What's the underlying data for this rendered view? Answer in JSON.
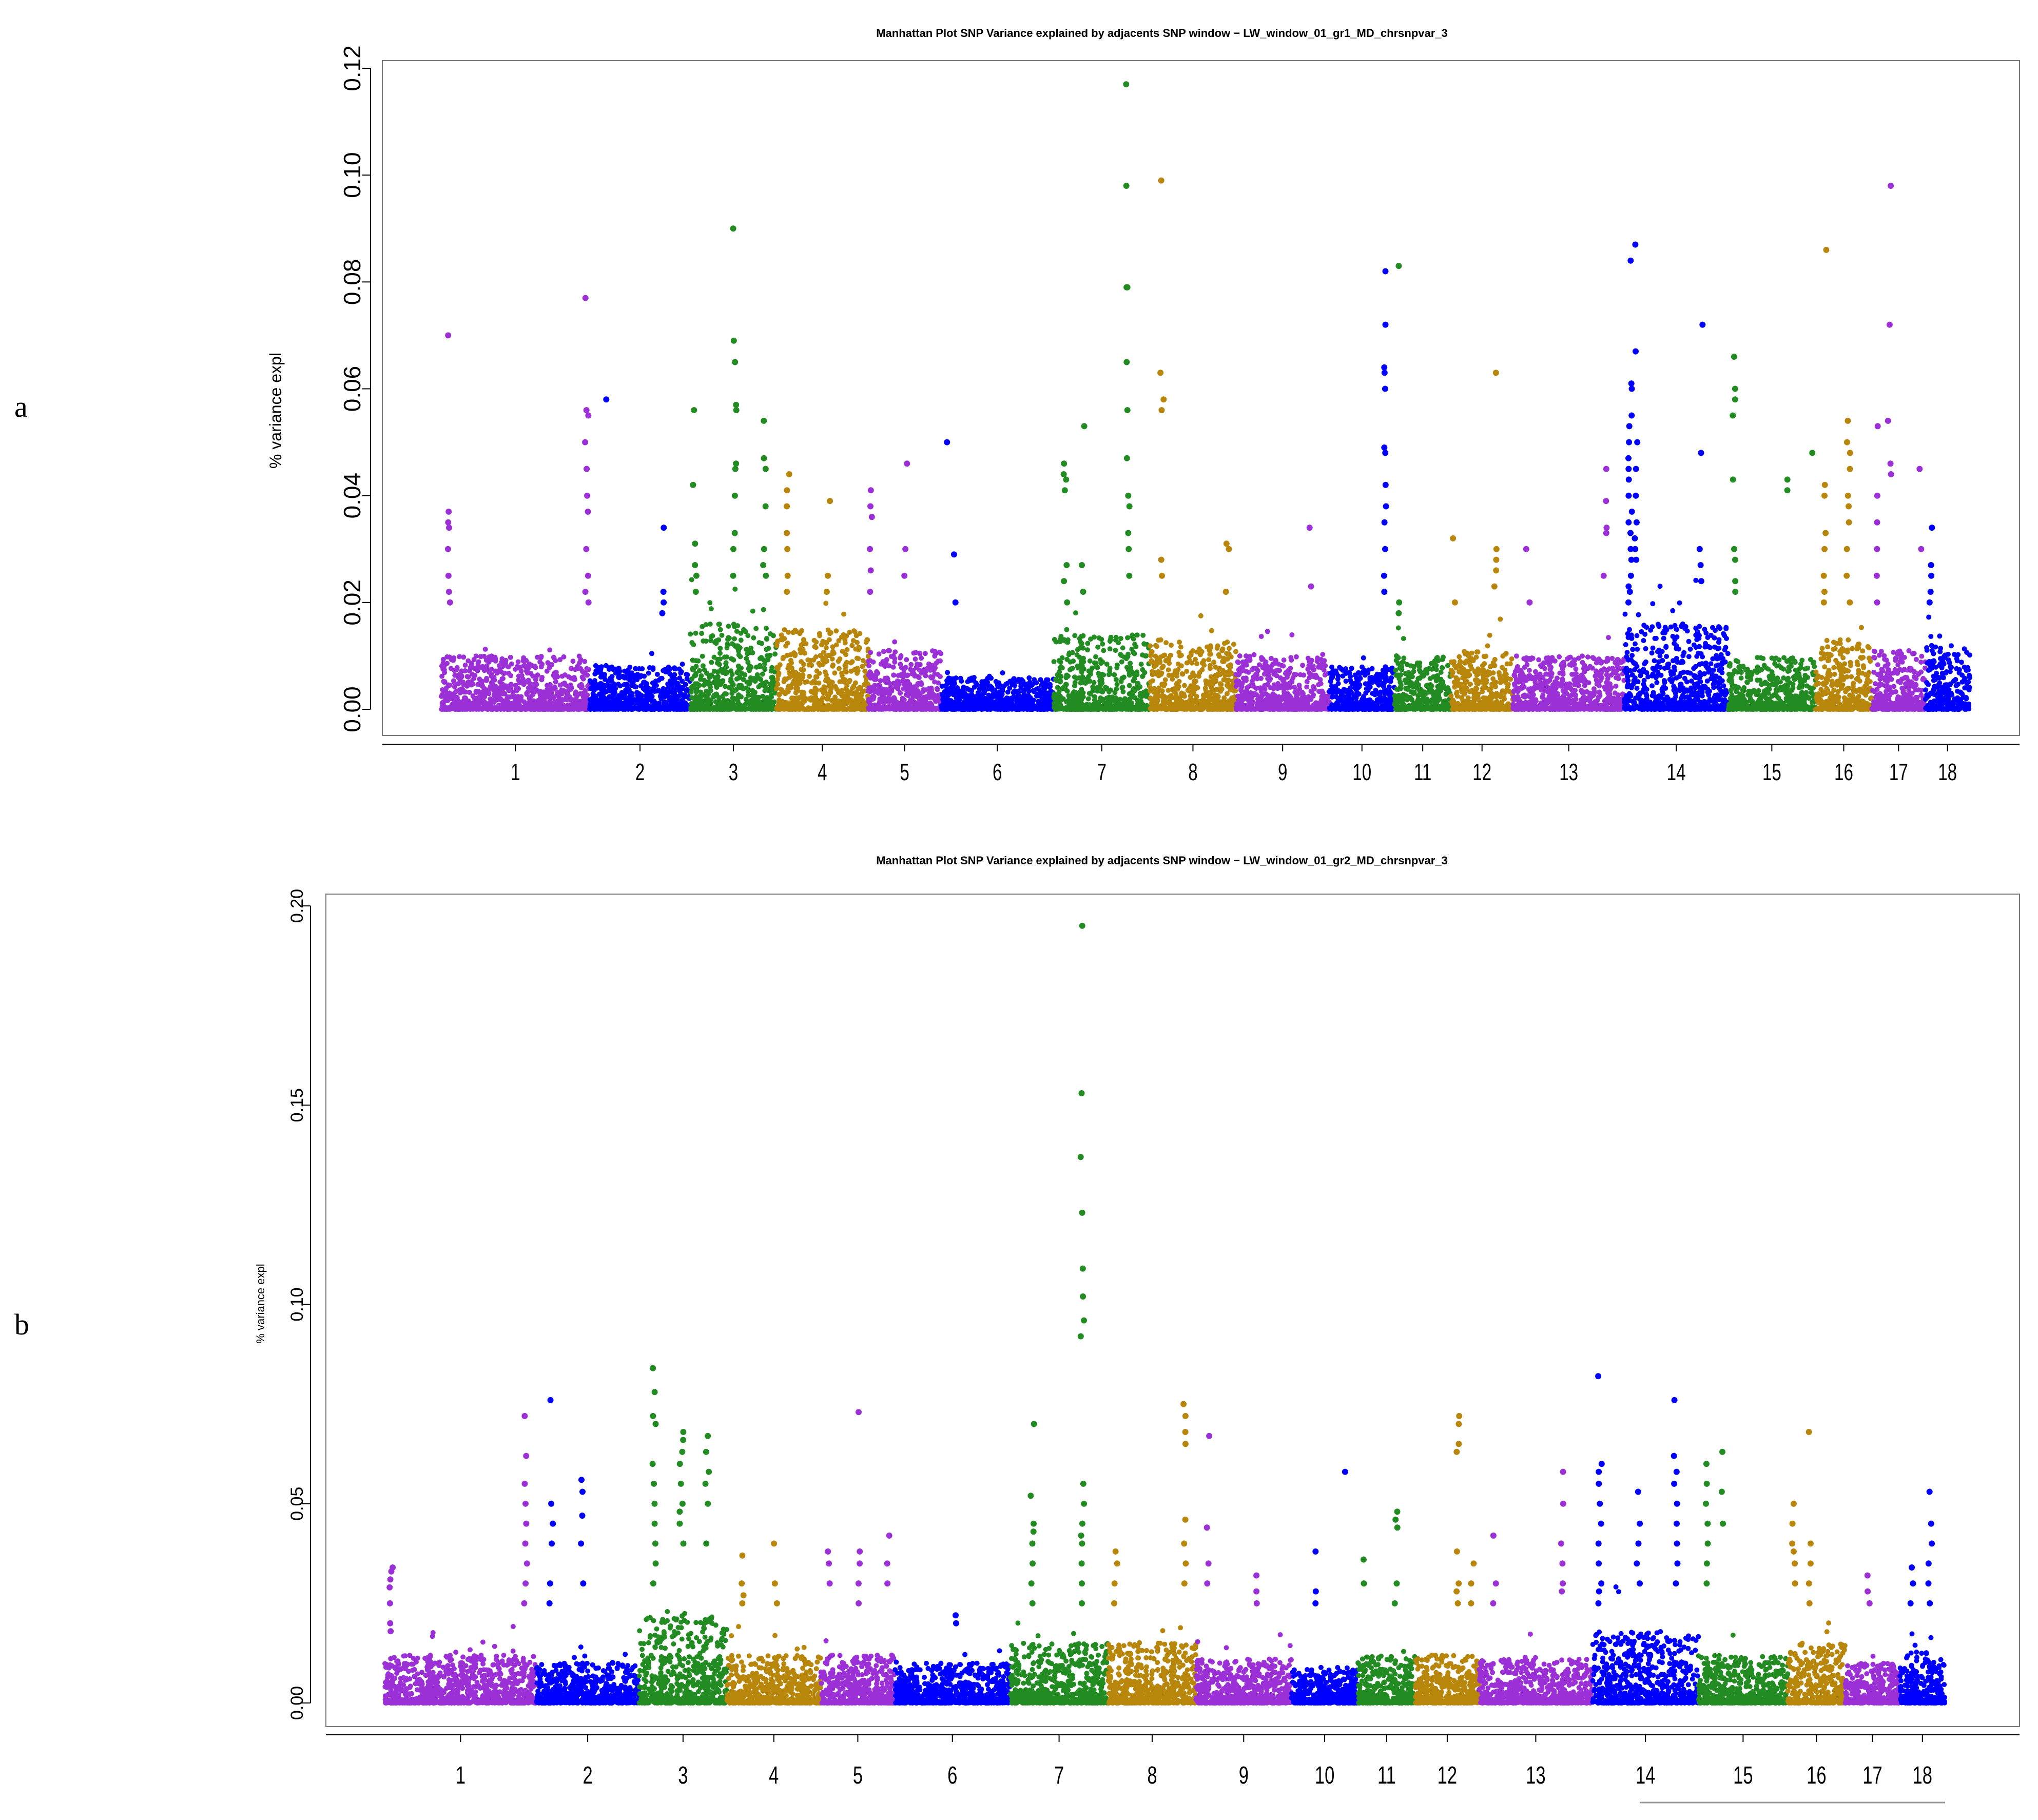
{
  "figure": {
    "panel_labels": [
      "a",
      "b"
    ],
    "colors": {
      "purple": "#9b30d6",
      "blue": "#0000ff",
      "green": "#228b22",
      "gold": "#b8860b"
    }
  },
  "chart_data": [
    {
      "type": "scatter",
      "panel": "a",
      "title": "Manhattan Plot SNP Variance explained by adjacents SNP window − LW_window_01_gr1_MD_chrsnpvar_3",
      "xlabel": "",
      "ylabel": "% variance expl",
      "ylim": [
        0,
        0.12
      ],
      "yticks": [
        "0.00",
        "0.02",
        "0.04",
        "0.06",
        "0.08",
        "0.10",
        "0.12"
      ],
      "categories": [
        "1",
        "2",
        "3",
        "4",
        "5",
        "6",
        "7",
        "8",
        "9",
        "10",
        "11",
        "12",
        "13",
        "14",
        "15",
        "16",
        "17",
        "18"
      ],
      "chromosome_colors": [
        "purple",
        "blue",
        "green",
        "gold",
        "purple",
        "blue",
        "green",
        "gold",
        "purple",
        "blue",
        "green",
        "gold",
        "purple",
        "blue",
        "green",
        "gold",
        "purple",
        "blue"
      ],
      "chromosome_spans": [
        [
          0,
          100
        ],
        [
          100,
          168
        ],
        [
          168,
          226
        ],
        [
          226,
          288
        ],
        [
          288,
          337
        ],
        [
          337,
          413
        ],
        [
          413,
          478
        ],
        [
          478,
          536
        ],
        [
          536,
          599
        ],
        [
          599,
          643
        ],
        [
          643,
          681
        ],
        [
          681,
          723
        ],
        [
          723,
          798
        ],
        [
          798,
          868
        ],
        [
          868,
          927
        ],
        [
          927,
          965
        ],
        [
          965,
          1001
        ],
        [
          1001,
          1031
        ]
      ],
      "noise_max": [
        0.01,
        0.008,
        0.016,
        0.015,
        0.011,
        0.006,
        0.014,
        0.013,
        0.01,
        0.008,
        0.01,
        0.011,
        0.01,
        0.016,
        0.01,
        0.013,
        0.011,
        0.012
      ],
      "peaks": [
        {
          "chr": "1",
          "pos": 5,
          "values": [
            0.07,
            0.037,
            0.035,
            0.034,
            0.03,
            0.025,
            0.022,
            0.02
          ]
        },
        {
          "chr": "1",
          "pos": 98,
          "values": [
            0.077,
            0.056,
            0.055,
            0.05,
            0.045,
            0.04,
            0.037,
            0.03,
            0.025,
            0.022,
            0.02
          ]
        },
        {
          "chr": "2",
          "pos": 11,
          "values": [
            0.058
          ]
        },
        {
          "chr": "2",
          "pos": 50,
          "values": [
            0.034,
            0.022,
            0.02,
            0.018
          ]
        },
        {
          "chr": "3",
          "pos": 3,
          "values": [
            0.056,
            0.042,
            0.031,
            0.027,
            0.025,
            0.022
          ]
        },
        {
          "chr": "3",
          "pos": 30,
          "values": [
            0.09,
            0.069,
            0.065,
            0.057,
            0.056,
            0.046,
            0.045,
            0.04,
            0.033,
            0.03,
            0.025
          ]
        },
        {
          "chr": "3",
          "pos": 50,
          "values": [
            0.054,
            0.047,
            0.045,
            0.038,
            0.03,
            0.027,
            0.025
          ]
        },
        {
          "chr": "4",
          "pos": 8,
          "values": [
            0.044,
            0.041,
            0.038,
            0.033,
            0.03,
            0.025,
            0.022
          ]
        },
        {
          "chr": "4",
          "pos": 35,
          "values": [
            0.039,
            0.025,
            0.022
          ]
        },
        {
          "chr": "5",
          "pos": 2,
          "values": [
            0.041,
            0.038,
            0.036,
            0.03,
            0.026,
            0.022
          ]
        },
        {
          "chr": "5",
          "pos": 25,
          "values": [
            0.046,
            0.03,
            0.025
          ]
        },
        {
          "chr": "6",
          "pos": 5,
          "values": [
            0.05
          ]
        },
        {
          "chr": "6",
          "pos": 10,
          "values": [
            0.029,
            0.02
          ]
        },
        {
          "chr": "7",
          "pos": 8,
          "values": [
            0.046,
            0.044,
            0.043,
            0.041,
            0.027,
            0.024,
            0.02
          ]
        },
        {
          "chr": "7",
          "pos": 20,
          "values": [
            0.053,
            0.027,
            0.022
          ]
        },
        {
          "chr": "7",
          "pos": 50,
          "values": [
            0.117,
            0.098,
            0.079,
            0.079,
            0.065,
            0.056,
            0.047,
            0.04,
            0.038,
            0.033,
            0.03,
            0.025
          ]
        },
        {
          "chr": "8",
          "pos": 8,
          "values": [
            0.099,
            0.063,
            0.058,
            0.056,
            0.028,
            0.025
          ]
        },
        {
          "chr": "8",
          "pos": 52,
          "values": [
            0.031,
            0.03,
            0.022
          ]
        },
        {
          "chr": "9",
          "pos": 50,
          "values": [
            0.034,
            0.023
          ]
        },
        {
          "chr": "10",
          "pos": 37,
          "values": [
            0.082,
            0.072,
            0.064,
            0.063,
            0.06,
            0.049,
            0.048,
            0.042,
            0.038,
            0.035,
            0.03,
            0.025,
            0.022
          ]
        },
        {
          "chr": "11",
          "pos": 4,
          "values": [
            0.083,
            0.02,
            0.018
          ]
        },
        {
          "chr": "12",
          "pos": 2,
          "values": [
            0.032,
            0.02
          ]
        },
        {
          "chr": "12",
          "pos": 30,
          "values": [
            0.063,
            0.03,
            0.028,
            0.026,
            0.023
          ]
        },
        {
          "chr": "13",
          "pos": 10,
          "values": [
            0.03,
            0.02
          ]
        },
        {
          "chr": "13",
          "pos": 62,
          "values": [
            0.045,
            0.039,
            0.034,
            0.033,
            0.025
          ]
        },
        {
          "chr": "14",
          "pos": 4,
          "values": [
            0.084,
            0.061,
            0.06,
            0.055,
            0.053,
            0.05,
            0.047,
            0.045,
            0.043,
            0.04,
            0.037,
            0.035,
            0.033,
            0.03,
            0.028,
            0.025,
            0.023,
            0.022,
            0.02
          ]
        },
        {
          "chr": "14",
          "pos": 8,
          "values": [
            0.087,
            0.067,
            0.05,
            0.045,
            0.04,
            0.035,
            0.032,
            0.03,
            0.028
          ]
        },
        {
          "chr": "14",
          "pos": 52,
          "values": [
            0.072,
            0.048,
            0.03,
            0.027,
            0.024
          ]
        },
        {
          "chr": "15",
          "pos": 4,
          "values": [
            0.066,
            0.06,
            0.058,
            0.055,
            0.043,
            0.03,
            0.028,
            0.024,
            0.022
          ]
        },
        {
          "chr": "15",
          "pos": 40,
          "values": [
            0.043,
            0.041
          ]
        },
        {
          "chr": "15",
          "pos": 56,
          "values": [
            0.048
          ]
        },
        {
          "chr": "16",
          "pos": 6,
          "values": [
            0.086,
            0.042,
            0.04,
            0.033,
            0.03,
            0.025,
            0.022,
            0.02
          ]
        },
        {
          "chr": "16",
          "pos": 22,
          "values": [
            0.054,
            0.05,
            0.048,
            0.045,
            0.04,
            0.038,
            0.035,
            0.03,
            0.025,
            0.02
          ]
        },
        {
          "chr": "17",
          "pos": 4,
          "values": [
            0.053,
            0.04,
            0.035,
            0.03,
            0.025,
            0.02
          ]
        },
        {
          "chr": "17",
          "pos": 12,
          "values": [
            0.098,
            0.072,
            0.054,
            0.046,
            0.044
          ]
        },
        {
          "chr": "17",
          "pos": 32,
          "values": [
            0.045,
            0.03
          ]
        },
        {
          "chr": "18",
          "pos": 4,
          "values": [
            0.034,
            0.027,
            0.025,
            0.022,
            0.02
          ]
        }
      ]
    },
    {
      "type": "scatter",
      "panel": "b",
      "title": "Manhattan Plot SNP Variance explained by adjacents SNP window − LW_window_01_gr2_MD_chrsnpvar_3",
      "xlabel": "",
      "ylabel": "% variance expl",
      "ylim": [
        0,
        0.2
      ],
      "yticks": [
        "0.00",
        "0.05",
        "0.10",
        "0.15",
        "0.20"
      ],
      "categories": [
        "1",
        "2",
        "3",
        "4",
        "5",
        "6",
        "7",
        "8",
        "9",
        "10",
        "11",
        "12",
        "13",
        "14",
        "15",
        "16",
        "17",
        "18"
      ],
      "chromosome_colors": [
        "purple",
        "blue",
        "green",
        "gold",
        "purple",
        "blue",
        "green",
        "gold",
        "purple",
        "blue",
        "green",
        "gold",
        "purple",
        "blue",
        "green",
        "gold",
        "purple",
        "blue"
      ],
      "chromosome_spans": [
        [
          0,
          100
        ],
        [
          100,
          168
        ],
        [
          168,
          226
        ],
        [
          226,
          288
        ],
        [
          288,
          337
        ],
        [
          337,
          413
        ],
        [
          413,
          478
        ],
        [
          478,
          536
        ],
        [
          536,
          599
        ],
        [
          599,
          643
        ],
        [
          643,
          681
        ],
        [
          681,
          723
        ],
        [
          723,
          798
        ],
        [
          798,
          868
        ],
        [
          868,
          927
        ],
        [
          927,
          965
        ],
        [
          965,
          1001
        ],
        [
          1001,
          1031
        ]
      ],
      "noise_max": [
        0.012,
        0.01,
        0.022,
        0.012,
        0.012,
        0.01,
        0.015,
        0.015,
        0.011,
        0.009,
        0.012,
        0.012,
        0.011,
        0.018,
        0.012,
        0.015,
        0.01,
        0.013
      ],
      "peaks": [
        {
          "chr": "1",
          "pos": 4,
          "values": [
            0.034,
            0.033,
            0.031,
            0.029,
            0.025,
            0.02,
            0.018
          ]
        },
        {
          "chr": "1",
          "pos": 93,
          "values": [
            0.072,
            0.062,
            0.055,
            0.05,
            0.045,
            0.04,
            0.035,
            0.03,
            0.025
          ]
        },
        {
          "chr": "2",
          "pos": 10,
          "values": [
            0.076,
            0.05,
            0.045,
            0.04,
            0.03,
            0.025
          ]
        },
        {
          "chr": "2",
          "pos": 30,
          "values": [
            0.056,
            0.053,
            0.047,
            0.04,
            0.03
          ]
        },
        {
          "chr": "3",
          "pos": 10,
          "values": [
            0.084,
            0.078,
            0.072,
            0.07,
            0.06,
            0.055,
            0.05,
            0.045,
            0.04,
            0.035,
            0.03
          ]
        },
        {
          "chr": "3",
          "pos": 28,
          "values": [
            0.068,
            0.066,
            0.063,
            0.06,
            0.055,
            0.05,
            0.048,
            0.045,
            0.04
          ]
        },
        {
          "chr": "3",
          "pos": 45,
          "values": [
            0.067,
            0.063,
            0.058,
            0.055,
            0.05,
            0.04
          ]
        },
        {
          "chr": "4",
          "pos": 10,
          "values": [
            0.037,
            0.03,
            0.027,
            0.025
          ]
        },
        {
          "chr": "4",
          "pos": 32,
          "values": [
            0.04,
            0.03,
            0.025
          ]
        },
        {
          "chr": "5",
          "pos": 5,
          "values": [
            0.038,
            0.035,
            0.03
          ]
        },
        {
          "chr": "5",
          "pos": 25,
          "values": [
            0.073,
            0.038,
            0.035,
            0.03,
            0.025
          ]
        },
        {
          "chr": "5",
          "pos": 45,
          "values": [
            0.042,
            0.035,
            0.03
          ]
        },
        {
          "chr": "6",
          "pos": 40,
          "values": [
            0.022,
            0.02
          ]
        },
        {
          "chr": "7",
          "pos": 15,
          "values": [
            0.07,
            0.052,
            0.045,
            0.043,
            0.04,
            0.035,
            0.03,
            0.025
          ]
        },
        {
          "chr": "7",
          "pos": 48,
          "values": [
            0.195,
            0.153,
            0.137,
            0.123,
            0.109,
            0.102,
            0.096,
            0.092,
            0.055,
            0.05,
            0.045,
            0.042,
            0.04,
            0.035,
            0.03,
            0.025
          ]
        },
        {
          "chr": "8",
          "pos": 5,
          "values": [
            0.038,
            0.035,
            0.03,
            0.025
          ]
        },
        {
          "chr": "8",
          "pos": 50,
          "values": [
            0.075,
            0.072,
            0.068,
            0.065,
            0.046,
            0.04,
            0.035,
            0.03
          ]
        },
        {
          "chr": "9",
          "pos": 8,
          "values": [
            0.067,
            0.044,
            0.035,
            0.03
          ]
        },
        {
          "chr": "9",
          "pos": 40,
          "values": [
            0.032,
            0.028,
            0.025
          ]
        },
        {
          "chr": "10",
          "pos": 15,
          "values": [
            0.038,
            0.028,
            0.025
          ]
        },
        {
          "chr": "10",
          "pos": 35,
          "values": [
            0.058
          ]
        },
        {
          "chr": "11",
          "pos": 3,
          "values": [
            0.036,
            0.03
          ]
        },
        {
          "chr": "11",
          "pos": 25,
          "values": [
            0.048,
            0.046,
            0.044,
            0.03,
            0.025
          ]
        },
        {
          "chr": "12",
          "pos": 28,
          "values": [
            0.072,
            0.07,
            0.065,
            0.063,
            0.038,
            0.03,
            0.028,
            0.025
          ]
        },
        {
          "chr": "12",
          "pos": 38,
          "values": [
            0.035,
            0.03,
            0.025
          ]
        },
        {
          "chr": "13",
          "pos": 10,
          "values": [
            0.042,
            0.03,
            0.025
          ]
        },
        {
          "chr": "13",
          "pos": 55,
          "values": [
            0.058,
            0.05,
            0.04,
            0.035,
            0.03,
            0.028
          ]
        },
        {
          "chr": "14",
          "pos": 5,
          "values": [
            0.082,
            0.06,
            0.058,
            0.055,
            0.05,
            0.045,
            0.04,
            0.035,
            0.03,
            0.028,
            0.025
          ]
        },
        {
          "chr": "14",
          "pos": 30,
          "values": [
            0.053,
            0.045,
            0.04,
            0.035,
            0.03
          ]
        },
        {
          "chr": "14",
          "pos": 55,
          "values": [
            0.076,
            0.062,
            0.058,
            0.055,
            0.05,
            0.045,
            0.04,
            0.035,
            0.03
          ]
        },
        {
          "chr": "15",
          "pos": 5,
          "values": [
            0.06,
            0.055,
            0.05,
            0.045,
            0.04,
            0.035,
            0.03
          ]
        },
        {
          "chr": "15",
          "pos": 15,
          "values": [
            0.063,
            0.053,
            0.045
          ]
        },
        {
          "chr": "16",
          "pos": 4,
          "values": [
            0.05,
            0.045,
            0.04,
            0.038,
            0.035,
            0.03
          ]
        },
        {
          "chr": "16",
          "pos": 15,
          "values": [
            0.068,
            0.04,
            0.035,
            0.03,
            0.025
          ]
        },
        {
          "chr": "17",
          "pos": 15,
          "values": [
            0.032,
            0.028,
            0.025
          ]
        },
        {
          "chr": "18",
          "pos": 20,
          "values": [
            0.053,
            0.045,
            0.04,
            0.035,
            0.03,
            0.025
          ]
        },
        {
          "chr": "18",
          "pos": 8,
          "values": [
            0.034,
            0.03,
            0.025
          ]
        }
      ]
    }
  ]
}
